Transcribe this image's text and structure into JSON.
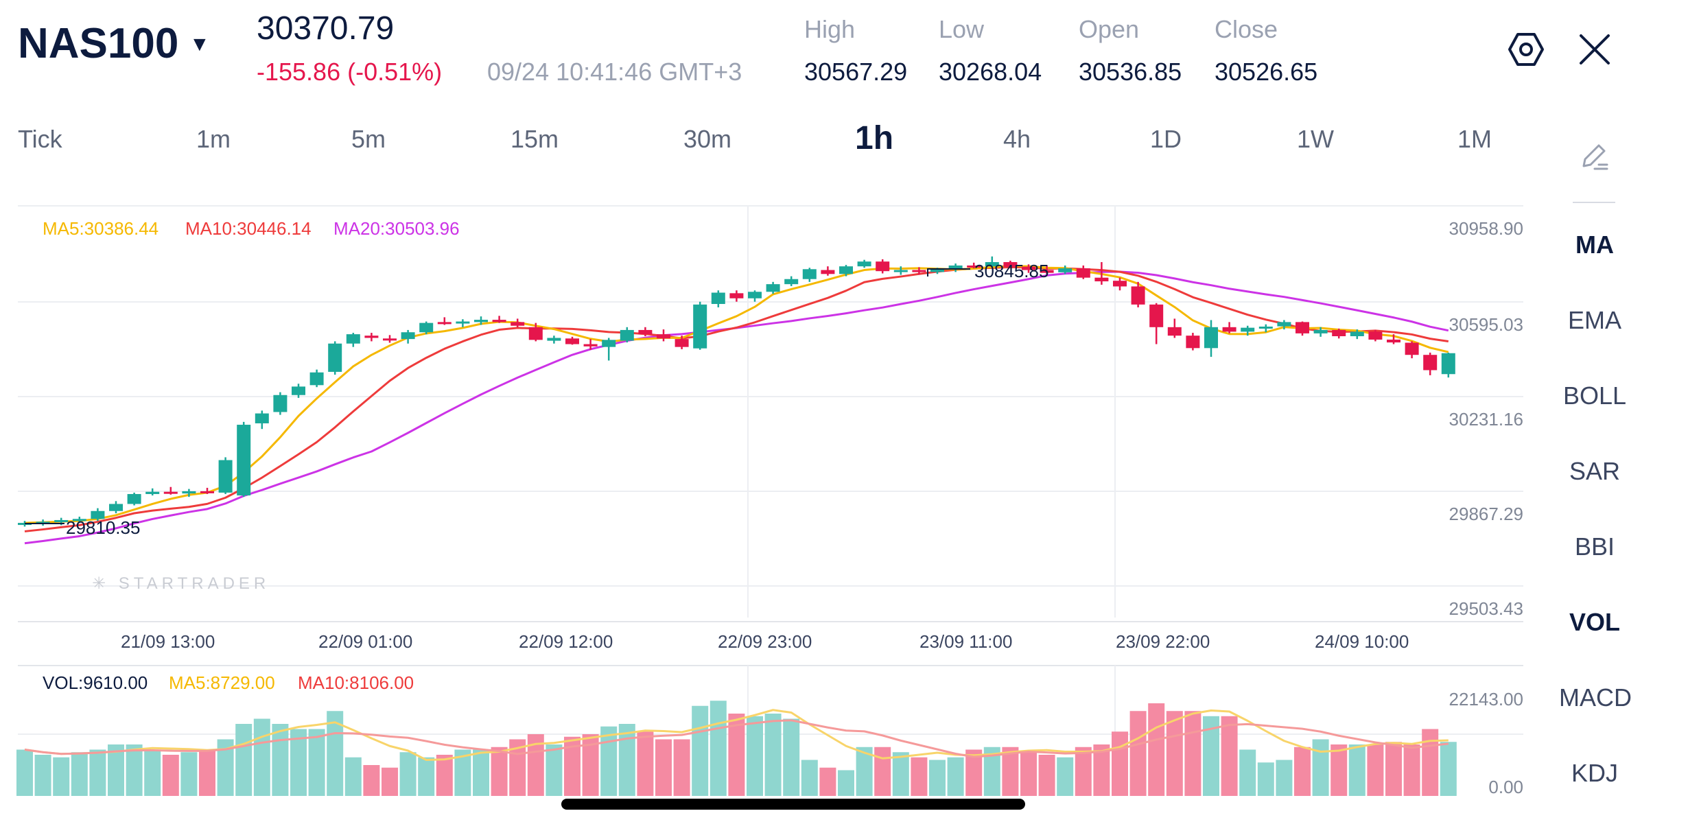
{
  "header": {
    "symbol": "NAS100",
    "last_price": "30370.79",
    "change": "-155.86 (-0.51%)",
    "timestamp": "09/24 10:41:46 GMT+3",
    "stats": [
      {
        "label": "High",
        "value": "30567.29"
      },
      {
        "label": "Low",
        "value": "30268.04"
      },
      {
        "label": "Open",
        "value": "30536.85"
      },
      {
        "label": "Close",
        "value": "30526.65"
      }
    ]
  },
  "timeframes": [
    "Tick",
    "1m",
    "5m",
    "15m",
    "30m",
    "1h",
    "4h",
    "1D",
    "1W",
    "1M"
  ],
  "active_timeframe": "1h",
  "indicators": [
    "MA",
    "EMA",
    "BOLL",
    "SAR",
    "BBI",
    "VOL",
    "MACD",
    "KDJ"
  ],
  "active_indicators": [
    "MA",
    "VOL"
  ],
  "main_legend": {
    "ma5": "MA5:30386.44",
    "ma10": "MA10:30446.14",
    "ma20": "MA20:30503.96"
  },
  "vol_legend": {
    "vol": "VOL:9610.00",
    "ma5": "MA5:8729.00",
    "ma10": "MA10:8106.00"
  },
  "price_axis": [
    "30958.90",
    "30595.03",
    "30231.16",
    "29867.29",
    "29503.43"
  ],
  "vol_axis": [
    "22143.00",
    "0.00"
  ],
  "time_axis": [
    "21/09 13:00",
    "22/09 01:00",
    "22/09 12:00",
    "22/09 23:00",
    "23/09 11:00",
    "23/09 22:00",
    "24/09 10:00"
  ],
  "annotations": {
    "high_mark": "30845.85",
    "low_mark": "29810.35"
  },
  "watermark": "STARTRADER",
  "colors": {
    "up": "#1ba99a",
    "down": "#e5164c",
    "ma5": "#f5b800",
    "ma10": "#ee3b3b",
    "ma20": "#cc33e6",
    "vol_up": "#8fd6cf",
    "vol_down": "#f48aa2"
  },
  "chart_data": {
    "type": "candlestick",
    "series": [
      {
        "name": "MA5",
        "values_note": "moving average overlay"
      },
      {
        "name": "MA10",
        "values_note": "moving average overlay"
      },
      {
        "name": "MA20",
        "values_note": "moving average overlay"
      }
    ],
    "ylim": [
      29503.43,
      30958.9
    ],
    "ohlc": [
      [
        29832,
        29845,
        29825,
        29838
      ],
      [
        29838,
        29850,
        29828,
        29842
      ],
      [
        29842,
        29856,
        29830,
        29848
      ],
      [
        29848,
        29860,
        29838,
        29852
      ],
      [
        29852,
        29890,
        29845,
        29880
      ],
      [
        29880,
        29915,
        29872,
        29905
      ],
      [
        29905,
        29945,
        29900,
        29940
      ],
      [
        29940,
        29960,
        29935,
        29948
      ],
      [
        29948,
        29965,
        29938,
        29942
      ],
      [
        29942,
        29958,
        29930,
        29950
      ],
      [
        29950,
        29962,
        29940,
        29945
      ],
      [
        29945,
        30070,
        29940,
        30060
      ],
      [
        29935,
        30195,
        29930,
        30185
      ],
      [
        30190,
        30235,
        30170,
        30225
      ],
      [
        30230,
        30300,
        30220,
        30290
      ],
      [
        30290,
        30330,
        30280,
        30320
      ],
      [
        30325,
        30380,
        30318,
        30370
      ],
      [
        30372,
        30480,
        30362,
        30472
      ],
      [
        30472,
        30510,
        30460,
        30505
      ],
      [
        30500,
        30510,
        30480,
        30492
      ],
      [
        30490,
        30502,
        30475,
        30485
      ],
      [
        30488,
        30520,
        30472,
        30512
      ],
      [
        30512,
        30550,
        30505,
        30545
      ],
      [
        30548,
        30565,
        30538,
        30545
      ],
      [
        30545,
        30558,
        30530,
        30550
      ],
      [
        30548,
        30568,
        30538,
        30556
      ],
      [
        30556,
        30570,
        30545,
        30548
      ],
      [
        30548,
        30560,
        30530,
        30535
      ],
      [
        30530,
        30545,
        30480,
        30485
      ],
      [
        30482,
        30500,
        30472,
        30492
      ],
      [
        30490,
        30496,
        30468,
        30470
      ],
      [
        30470,
        30488,
        30450,
        30462
      ],
      [
        30460,
        30492,
        30412,
        30485
      ],
      [
        30482,
        30530,
        30476,
        30520
      ],
      [
        30520,
        30530,
        30498,
        30505
      ],
      [
        30505,
        30522,
        30480,
        30490
      ],
      [
        30488,
        30500,
        30452,
        30460
      ],
      [
        30455,
        30620,
        30450,
        30610
      ],
      [
        30612,
        30660,
        30600,
        30652
      ],
      [
        30650,
        30660,
        30620,
        30632
      ],
      [
        30632,
        30660,
        30620,
        30655
      ],
      [
        30655,
        30690,
        30648,
        30682
      ],
      [
        30682,
        30710,
        30675,
        30700
      ],
      [
        30700,
        30740,
        30690,
        30735
      ],
      [
        30732,
        30745,
        30712,
        30718
      ],
      [
        30718,
        30750,
        30710,
        30745
      ],
      [
        30745,
        30768,
        30740,
        30762
      ],
      [
        30762,
        30770,
        30720,
        30728
      ],
      [
        30728,
        30745,
        30715,
        30732
      ],
      [
        30732,
        30742,
        30716,
        30725
      ],
      [
        30725,
        30740,
        30718,
        30736
      ],
      [
        30736,
        30755,
        30725,
        30748
      ],
      [
        30748,
        30758,
        30738,
        30744
      ],
      [
        30745,
        30780,
        30740,
        30760
      ],
      [
        30760,
        30765,
        30738,
        30742
      ],
      [
        30744,
        30752,
        30722,
        30732
      ],
      [
        30732,
        30748,
        30718,
        30722
      ],
      [
        30724,
        30748,
        30718,
        30738
      ],
      [
        30738,
        30748,
        30700,
        30705
      ],
      [
        30705,
        30760,
        30680,
        30692
      ],
      [
        30694,
        30705,
        30660,
        30674
      ],
      [
        30674,
        30690,
        30600,
        30610
      ],
      [
        30610,
        30615,
        30470,
        30530
      ],
      [
        30530,
        30560,
        30492,
        30500
      ],
      [
        30500,
        30510,
        30448,
        30456
      ],
      [
        30456,
        30555,
        30425,
        30530
      ],
      [
        30530,
        30548,
        30508,
        30514
      ],
      [
        30514,
        30535,
        30500,
        30528
      ],
      [
        30528,
        30540,
        30512,
        30532
      ],
      [
        30533,
        30555,
        30522,
        30548
      ],
      [
        30548,
        30550,
        30500,
        30508
      ],
      [
        30508,
        30530,
        30496,
        30520
      ],
      [
        30520,
        30525,
        30490,
        30498
      ],
      [
        30498,
        30522,
        30488,
        30514
      ],
      [
        30514,
        30520,
        30480,
        30486
      ],
      [
        30486,
        30505,
        30470,
        30476
      ],
      [
        30475,
        30480,
        30420,
        30432
      ],
      [
        30432,
        30440,
        30360,
        30378
      ],
      [
        30364,
        30440,
        30352,
        30438
      ]
    ],
    "volume": [
      18,
      16,
      15,
      17,
      18,
      20,
      20,
      18,
      16,
      17,
      18,
      22,
      28,
      30,
      28,
      26,
      26,
      33,
      15,
      12,
      11,
      17,
      15,
      16,
      18,
      18,
      19,
      22,
      24,
      20,
      23,
      24,
      27,
      28,
      25,
      22,
      22,
      35,
      37,
      32,
      31,
      32,
      30,
      14,
      11,
      10,
      19,
      19,
      17,
      15,
      14,
      15,
      18,
      19,
      19,
      17,
      16,
      15,
      19,
      20,
      25,
      33,
      36,
      33,
      33,
      31,
      31,
      18,
      13,
      14,
      19,
      22,
      20,
      20,
      20,
      21,
      20,
      26,
      21
    ]
  }
}
